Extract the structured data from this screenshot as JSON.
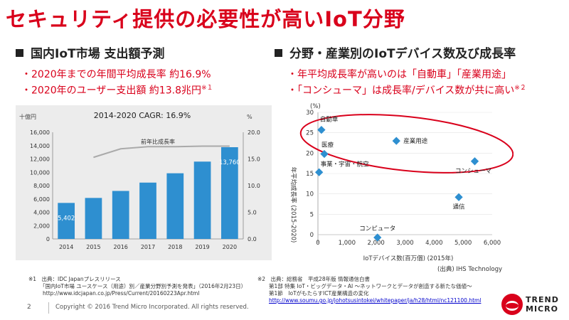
{
  "title": "セキュリティ提供の必要性が高いIoT分野",
  "left": {
    "heading": "国内IoT市場 支出額予測",
    "bullets": [
      "・2020年までの年間平均成長率 約16.9%",
      "・2020年のユーザー支出額 約13.8兆円"
    ],
    "bullet2_sup": "※１"
  },
  "right": {
    "heading": "分野・産業別のIoTデバイス数及び成長率",
    "bullets": [
      "・年平均成長率が高いのは「自動車」「産業用途」",
      "・「コンシューマ」は成長率/デバイス数が共に高い"
    ],
    "bullet2_sup": "※２"
  },
  "chart_data": [
    {
      "type": "bar",
      "title": "2014-2020 CAGR: 16.9%",
      "y_unit_left": "十億円",
      "y_unit_right": "%",
      "categories": [
        "2014",
        "2015",
        "2016",
        "2017",
        "2018",
        "2019",
        "2020"
      ],
      "values": [
        5402,
        6150,
        7200,
        8450,
        9850,
        11600,
        13760
      ],
      "data_labels": {
        "0": "5,402",
        "6": "13,760"
      },
      "ylim": [
        0,
        16000
      ],
      "yticks": [
        "0",
        "2,000",
        "4,000",
        "6,000",
        "8,000",
        "10,000",
        "12,000",
        "14,000",
        "16,000"
      ],
      "y2lim": [
        0,
        20
      ],
      "y2ticks": [
        "0.0",
        "5.0",
        "10.0",
        "15.0",
        "20.0"
      ],
      "series": [
        {
          "type": "bar",
          "values": [
            5402,
            6150,
            7200,
            8450,
            9850,
            11600,
            13760
          ],
          "color": "#2e8fd0"
        },
        {
          "type": "line",
          "name": "前年比成長率",
          "axis": "right",
          "values": [
            null,
            15.3,
            16.9,
            17.3,
            17.3,
            17.4,
            17.4
          ],
          "color": "#aaaaaa"
        }
      ],
      "grid": false
    },
    {
      "type": "scatter",
      "xlabel": "IoTデバイス数(百万個) (2015年)",
      "ylabel": "年平均成長率 (2015-2020)",
      "y_unit": "(%)",
      "xlim": [
        0,
        6000
      ],
      "ylim": [
        0,
        30
      ],
      "xticks": [
        "0",
        "1,000",
        "2,000",
        "3,000",
        "4,000",
        "5,000",
        "6,000"
      ],
      "yticks": [
        "0",
        "5",
        "10",
        "15",
        "20",
        "25",
        "30"
      ],
      "points": [
        {
          "label": "自動車",
          "x": 120,
          "y": 25.7
        },
        {
          "label": "医療",
          "x": 220,
          "y": 19.8
        },
        {
          "label": "事業・宇宙・航空",
          "x": 40,
          "y": 15.3
        },
        {
          "label": "産業用途",
          "x": 2700,
          "y": 23.0
        },
        {
          "label": "コンシューマ",
          "x": 5400,
          "y": 18.0
        },
        {
          "label": "通信",
          "x": 4850,
          "y": 9.2
        },
        {
          "label": "コンピュータ",
          "x": 2050,
          "y": -0.7
        }
      ],
      "source": "(出典) IHS Technology",
      "color": "#2e8fd0",
      "highlight_color": "#d9001b"
    }
  ],
  "footnotes": {
    "note1": [
      "※1　出典：IDC Japanプレスリリース",
      "「国内IoT市場 ユースケース（用途）別／産業分野別予測を発表」（2016年2月23日）",
      "http://www.idcjapan.co.jp/Press/Current/20160223Apr.html"
    ],
    "note2": [
      "※2　出典：総務省　平成28年版 情報通信白書",
      "第1部 特集 IoT・ビッグデータ・AI ～ネットワークとデータが創造する新たな価値～",
      "第1節　IoTがもたらすICT産業構造の変化"
    ],
    "note2_link": "http://www.soumu.go.jp/johotsusintokei/whitepaper/ja/h28/html/nc121100.html"
  },
  "page_number": "2",
  "copyright": "Copyright © 2016 Trend Micro Incorporated. All rights reserved.",
  "logo": {
    "line1": "TREND",
    "line2": "MICRO"
  }
}
